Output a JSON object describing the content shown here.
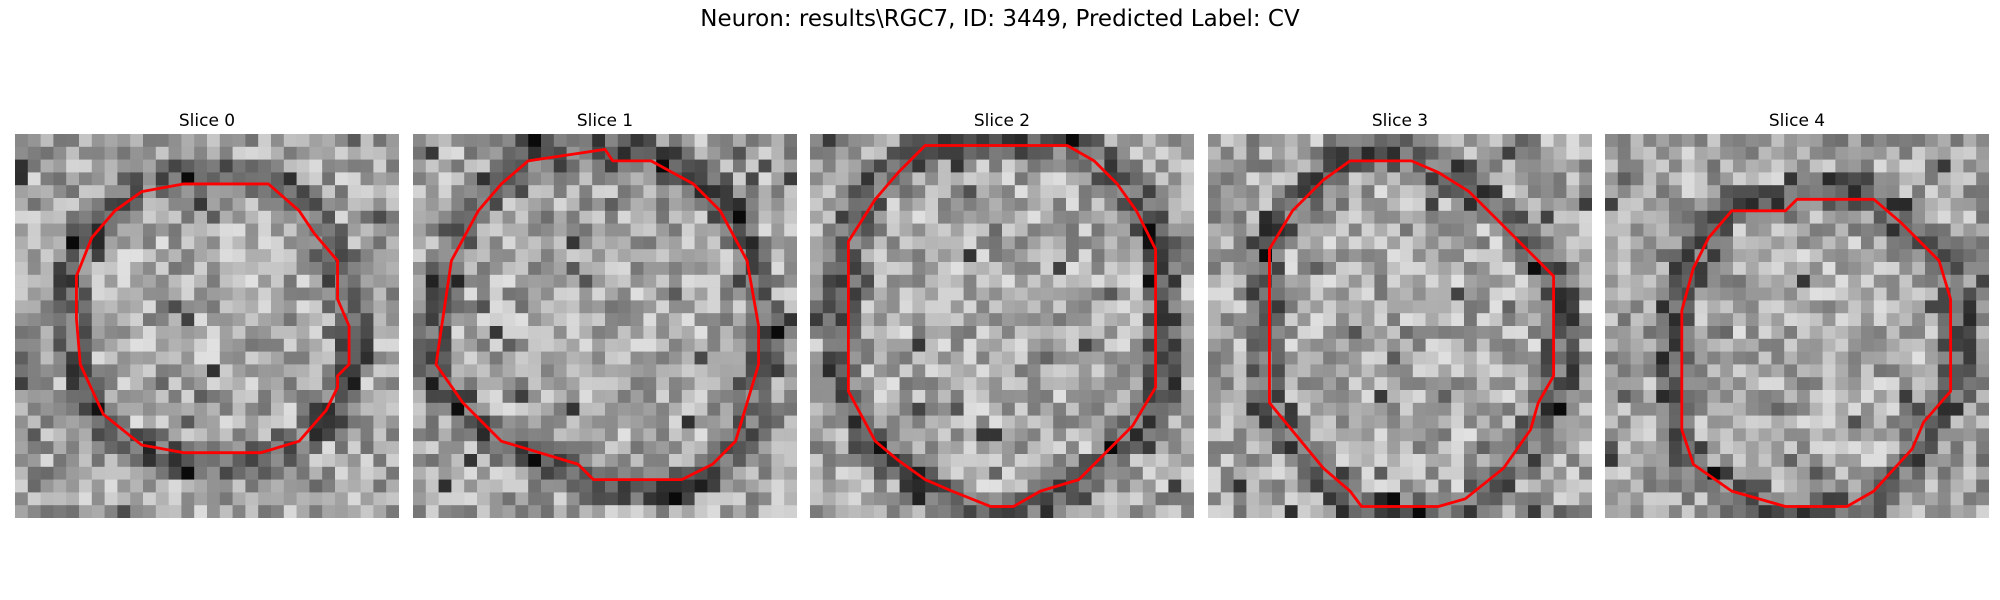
{
  "figure": {
    "title": "Neuron: results\\RGC7, ID: 3449, Predicted Label: CV"
  },
  "contour_color": "#ff0000",
  "slices": [
    {
      "title": "Slice 0",
      "seed": 11,
      "contour": [
        [
          0.44,
          0.13
        ],
        [
          0.66,
          0.13
        ],
        [
          0.74,
          0.2
        ],
        [
          0.78,
          0.26
        ],
        [
          0.84,
          0.33
        ],
        [
          0.84,
          0.43
        ],
        [
          0.87,
          0.5
        ],
        [
          0.87,
          0.6
        ],
        [
          0.84,
          0.63
        ],
        [
          0.84,
          0.66
        ],
        [
          0.81,
          0.72
        ],
        [
          0.74,
          0.8
        ],
        [
          0.64,
          0.83
        ],
        [
          0.44,
          0.83
        ],
        [
          0.33,
          0.81
        ],
        [
          0.23,
          0.73
        ],
        [
          0.17,
          0.6
        ],
        [
          0.16,
          0.48
        ],
        [
          0.16,
          0.37
        ],
        [
          0.2,
          0.27
        ],
        [
          0.26,
          0.2
        ],
        [
          0.33,
          0.15
        ]
      ]
    },
    {
      "title": "Slice 1",
      "seed": 23,
      "contour": [
        [
          0.3,
          0.07
        ],
        [
          0.5,
          0.04
        ],
        [
          0.52,
          0.07
        ],
        [
          0.62,
          0.07
        ],
        [
          0.73,
          0.13
        ],
        [
          0.8,
          0.2
        ],
        [
          0.87,
          0.33
        ],
        [
          0.9,
          0.5
        ],
        [
          0.9,
          0.6
        ],
        [
          0.87,
          0.7
        ],
        [
          0.84,
          0.8
        ],
        [
          0.78,
          0.86
        ],
        [
          0.7,
          0.9
        ],
        [
          0.47,
          0.9
        ],
        [
          0.43,
          0.86
        ],
        [
          0.23,
          0.8
        ],
        [
          0.13,
          0.7
        ],
        [
          0.06,
          0.6
        ],
        [
          0.1,
          0.33
        ],
        [
          0.17,
          0.2
        ],
        [
          0.23,
          0.13
        ]
      ]
    },
    {
      "title": "Slice 2",
      "seed": 37,
      "contour": [
        [
          0.3,
          0.03
        ],
        [
          0.67,
          0.03
        ],
        [
          0.74,
          0.07
        ],
        [
          0.8,
          0.13
        ],
        [
          0.85,
          0.2
        ],
        [
          0.9,
          0.3
        ],
        [
          0.9,
          0.66
        ],
        [
          0.84,
          0.76
        ],
        [
          0.77,
          0.83
        ],
        [
          0.7,
          0.9
        ],
        [
          0.6,
          0.93
        ],
        [
          0.53,
          0.97
        ],
        [
          0.47,
          0.97
        ],
        [
          0.37,
          0.93
        ],
        [
          0.3,
          0.9
        ],
        [
          0.23,
          0.85
        ],
        [
          0.17,
          0.8
        ],
        [
          0.1,
          0.67
        ],
        [
          0.1,
          0.28
        ],
        [
          0.17,
          0.17
        ],
        [
          0.23,
          0.1
        ]
      ]
    },
    {
      "title": "Slice 3",
      "seed": 41,
      "contour": [
        [
          0.37,
          0.07
        ],
        [
          0.53,
          0.07
        ],
        [
          0.6,
          0.1
        ],
        [
          0.68,
          0.15
        ],
        [
          0.8,
          0.27
        ],
        [
          0.9,
          0.37
        ],
        [
          0.9,
          0.63
        ],
        [
          0.86,
          0.7
        ],
        [
          0.84,
          0.77
        ],
        [
          0.77,
          0.87
        ],
        [
          0.67,
          0.95
        ],
        [
          0.6,
          0.97
        ],
        [
          0.4,
          0.97
        ],
        [
          0.37,
          0.93
        ],
        [
          0.3,
          0.87
        ],
        [
          0.16,
          0.7
        ],
        [
          0.16,
          0.52
        ],
        [
          0.16,
          0.3
        ],
        [
          0.22,
          0.2
        ],
        [
          0.3,
          0.12
        ]
      ]
    },
    {
      "title": "Slice 4",
      "seed": 53,
      "contour": [
        [
          0.33,
          0.2
        ],
        [
          0.4,
          0.2
        ],
        [
          0.47,
          0.2
        ],
        [
          0.5,
          0.17
        ],
        [
          0.7,
          0.17
        ],
        [
          0.77,
          0.23
        ],
        [
          0.87,
          0.33
        ],
        [
          0.9,
          0.43
        ],
        [
          0.9,
          0.67
        ],
        [
          0.83,
          0.75
        ],
        [
          0.8,
          0.82
        ],
        [
          0.7,
          0.93
        ],
        [
          0.63,
          0.97
        ],
        [
          0.47,
          0.97
        ],
        [
          0.33,
          0.93
        ],
        [
          0.23,
          0.86
        ],
        [
          0.2,
          0.77
        ],
        [
          0.2,
          0.67
        ],
        [
          0.2,
          0.46
        ],
        [
          0.23,
          0.35
        ],
        [
          0.27,
          0.27
        ]
      ]
    }
  ]
}
